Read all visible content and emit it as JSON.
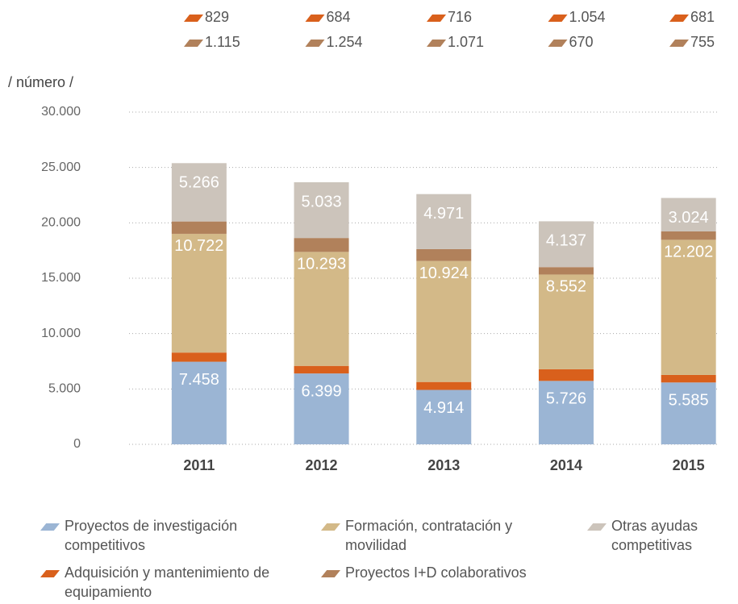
{
  "chart_data": {
    "type": "stacked_bar",
    "y_axis_label": "/ número /",
    "categories": [
      "2011",
      "2012",
      "2013",
      "2014",
      "2015"
    ],
    "series": [
      {
        "name": "Proyectos de investigación competitivos",
        "color": "#9bb5d4",
        "values": [
          7458,
          6399,
          4914,
          5726,
          5585
        ],
        "value_labels": [
          "7.458",
          "6.399",
          "4.914",
          "5.726",
          "5.585"
        ]
      },
      {
        "name": "Adquisición y mantenimiento de equipamiento",
        "color": "#d9601c",
        "values": [
          829,
          684,
          716,
          1054,
          681
        ],
        "value_labels": [
          "829",
          "684",
          "716",
          "1.054",
          "681"
        ]
      },
      {
        "name": "Formación, contratación y movilidad",
        "color": "#d3b988",
        "values": [
          10722,
          10293,
          10924,
          8552,
          12202
        ],
        "value_labels": [
          "10.722",
          "10.293",
          "10.924",
          "8.552",
          "12.202"
        ]
      },
      {
        "name": "Proyectos I+D colaborativos",
        "color": "#b1815b",
        "values": [
          1115,
          1254,
          1071,
          670,
          755
        ],
        "value_labels": [
          "1.115",
          "1.254",
          "1.071",
          "670",
          "755"
        ]
      },
      {
        "name": "Otras ayudas competitivas",
        "color": "#ccc4bb",
        "values": [
          5266,
          5033,
          4971,
          4137,
          3024
        ],
        "value_labels": [
          "5.266",
          "5.033",
          "4.971",
          "4.137",
          "3.024"
        ]
      }
    ],
    "ylim": [
      0,
      30000
    ],
    "yticks": [
      0,
      {
        "value": 5000,
        "label": "5.000"
      },
      {
        "value": 10000,
        "label": "10.000"
      },
      {
        "value": 15000,
        "label": "15.000"
      },
      {
        "value": 20000,
        "label": "20.000"
      },
      {
        "value": 25000,
        "label": "25.000"
      },
      {
        "value": 30000,
        "label": "30.000"
      }
    ],
    "grid": true
  }
}
